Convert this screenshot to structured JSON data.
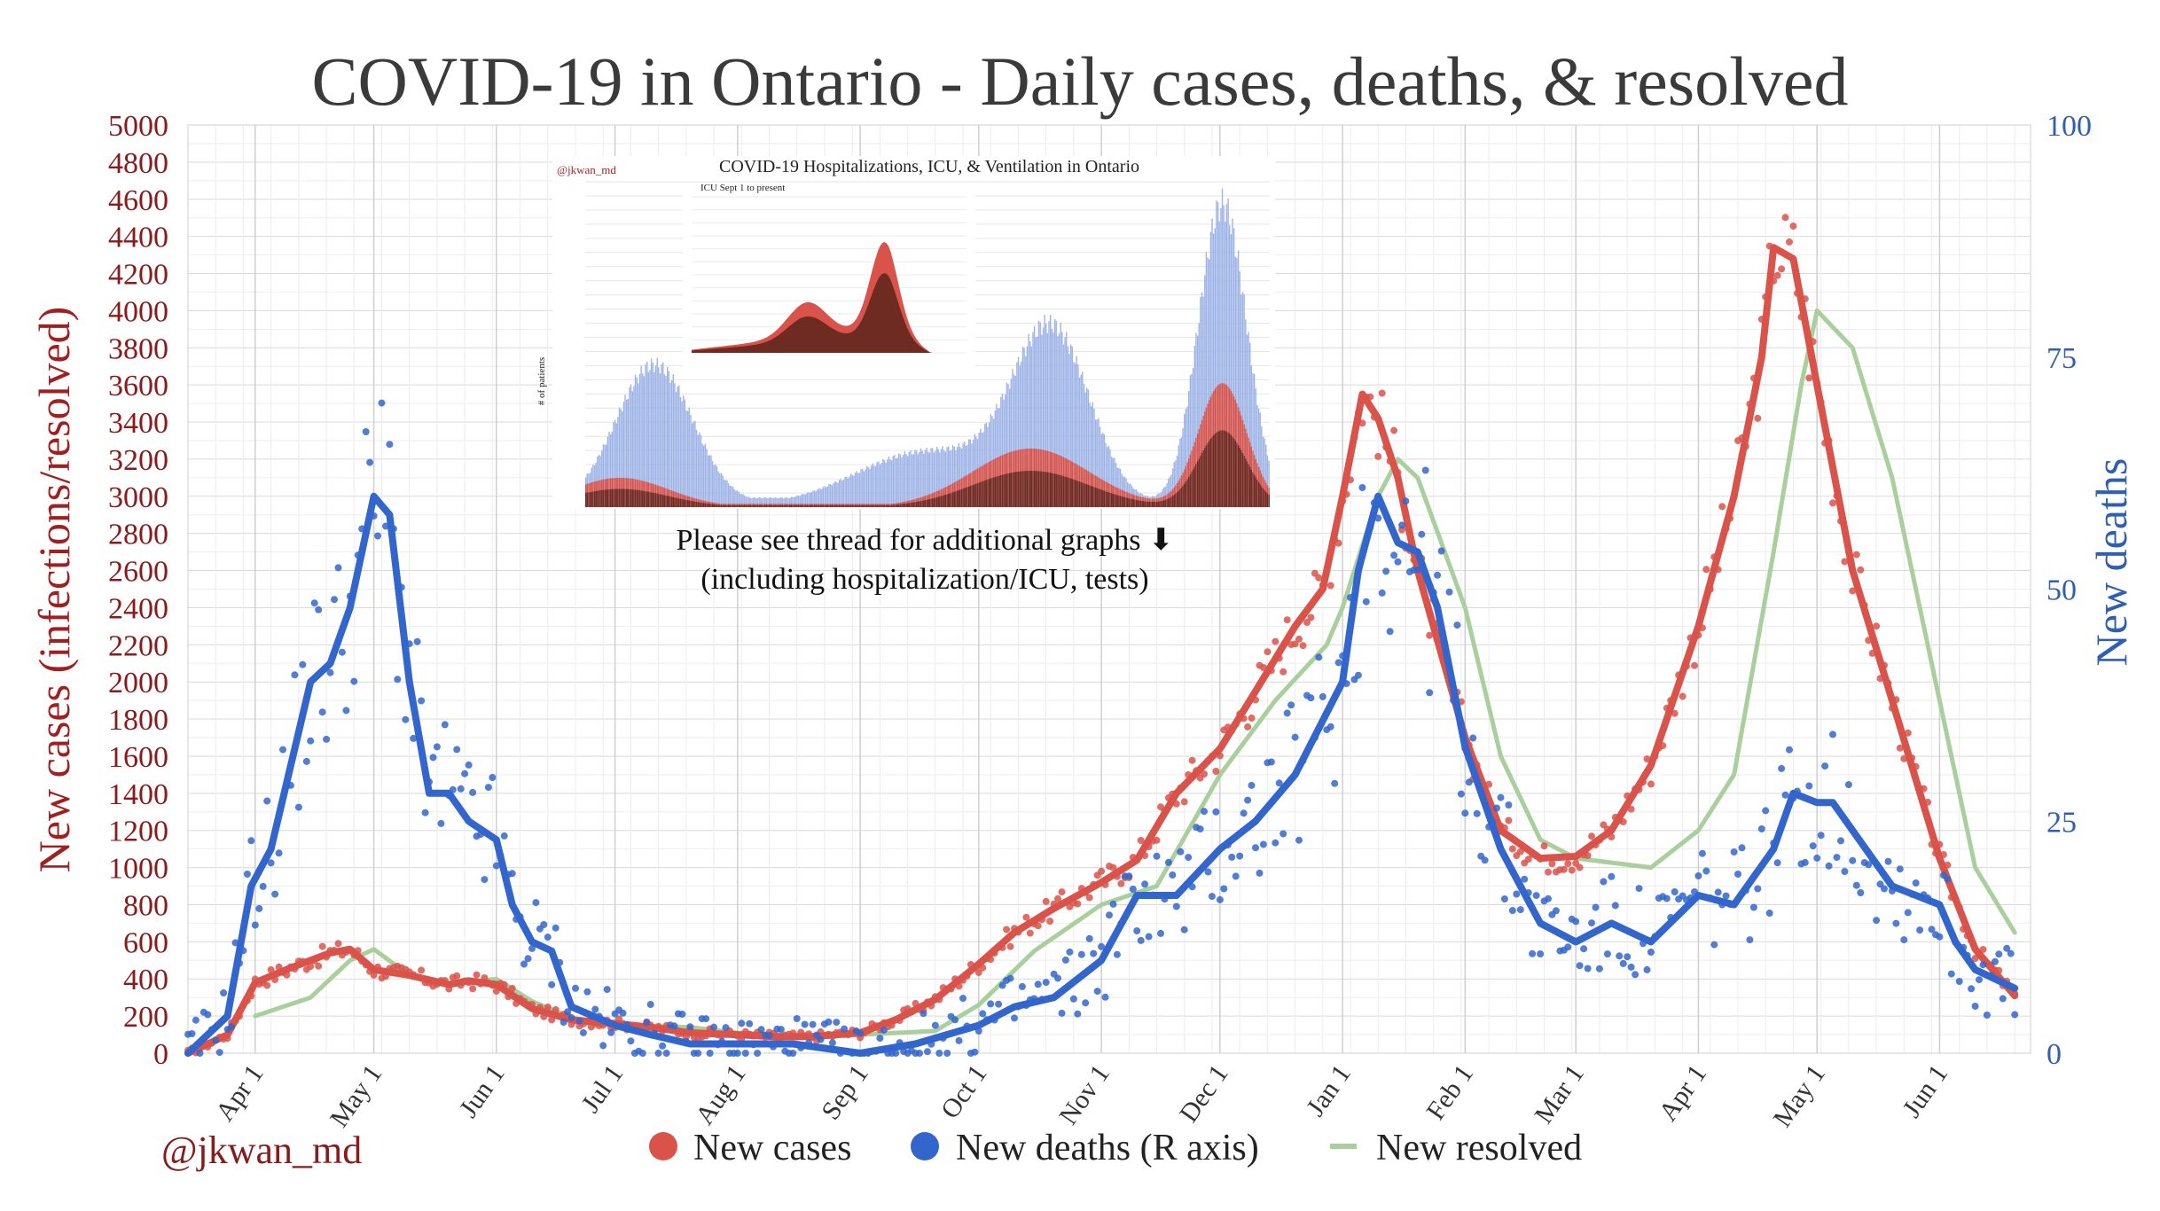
{
  "chart_data": {
    "type": "line",
    "title": "COVID-19 in Ontario - Daily cases, deaths, & resolved",
    "ylabel_left": "New cases (infections/resolved)",
    "ylabel_right": "New deaths",
    "ylim_left": [
      0,
      5000
    ],
    "ylim_right": [
      0,
      100
    ],
    "yticks_left": [
      "0",
      "200",
      "400",
      "600",
      "800",
      "1000",
      "1200",
      "1400",
      "1600",
      "1800",
      "2000",
      "2200",
      "2400",
      "2600",
      "2800",
      "3000",
      "3200",
      "3400",
      "3600",
      "3800",
      "4000",
      "4200",
      "4400",
      "4600",
      "4800",
      "5000"
    ],
    "yticks_right": [
      "0",
      "25",
      "50",
      "75",
      "100"
    ],
    "x_start": "2020-03-15",
    "x_end": "2021-06-24",
    "x_ticks": [
      {
        "label": "Apr 1",
        "date": "2020-04-01"
      },
      {
        "label": "May 1",
        "date": "2020-05-01"
      },
      {
        "label": "Jun 1",
        "date": "2020-06-01"
      },
      {
        "label": "Jul 1",
        "date": "2020-07-01"
      },
      {
        "label": "Aug 1",
        "date": "2020-08-01"
      },
      {
        "label": "Sep 1",
        "date": "2020-09-01"
      },
      {
        "label": "Oct 1",
        "date": "2020-10-01"
      },
      {
        "label": "Nov 1",
        "date": "2020-11-01"
      },
      {
        "label": "Dec 1",
        "date": "2020-12-01"
      },
      {
        "label": "Jan 1",
        "date": "2021-01-01"
      },
      {
        "label": "Feb 1",
        "date": "2021-02-01"
      },
      {
        "label": "Mar 1",
        "date": "2021-03-01"
      },
      {
        "label": "Apr 1",
        "date": "2021-04-01"
      },
      {
        "label": "May 1",
        "date": "2021-05-01"
      },
      {
        "label": "Jun 1",
        "date": "2021-06-01"
      }
    ],
    "grid": true,
    "legend_placement": "bottom",
    "series": [
      {
        "name": "New cases",
        "axis": "left",
        "color": "#d9534a",
        "x": [
          "2020-03-15",
          "2020-03-25",
          "2020-04-01",
          "2020-04-10",
          "2020-04-20",
          "2020-04-25",
          "2020-05-01",
          "2020-05-10",
          "2020-05-20",
          "2020-05-25",
          "2020-06-01",
          "2020-06-10",
          "2020-06-20",
          "2020-07-01",
          "2020-07-10",
          "2020-07-20",
          "2020-08-01",
          "2020-08-10",
          "2020-08-20",
          "2020-09-01",
          "2020-09-10",
          "2020-09-20",
          "2020-10-01",
          "2020-10-10",
          "2020-10-20",
          "2020-11-01",
          "2020-11-10",
          "2020-11-20",
          "2020-12-01",
          "2020-12-10",
          "2020-12-20",
          "2020-12-27",
          "2021-01-01",
          "2021-01-06",
          "2021-01-10",
          "2021-01-15",
          "2021-01-20",
          "2021-02-01",
          "2021-02-10",
          "2021-02-20",
          "2021-03-01",
          "2021-03-10",
          "2021-03-20",
          "2021-04-01",
          "2021-04-10",
          "2021-04-17",
          "2021-04-20",
          "2021-04-25",
          "2021-05-01",
          "2021-05-10",
          "2021-05-20",
          "2021-06-01",
          "2021-06-10",
          "2021-06-20"
        ],
        "values": [
          0,
          100,
          380,
          460,
          540,
          560,
          450,
          420,
          370,
          390,
          370,
          240,
          180,
          160,
          140,
          110,
          100,
          90,
          90,
          110,
          180,
          290,
          480,
          650,
          780,
          920,
          1040,
          1400,
          1640,
          1950,
          2300,
          2500,
          3000,
          3550,
          3420,
          3100,
          2600,
          1700,
          1200,
          1050,
          1060,
          1200,
          1550,
          2300,
          3000,
          3750,
          4340,
          4280,
          3600,
          2600,
          1900,
          1050,
          560,
          310
        ]
      },
      {
        "name": "New deaths (R axis)",
        "axis": "right",
        "color": "#3366cc",
        "x": [
          "2020-03-15",
          "2020-03-25",
          "2020-03-31",
          "2020-04-05",
          "2020-04-15",
          "2020-04-20",
          "2020-04-25",
          "2020-05-01",
          "2020-05-05",
          "2020-05-10",
          "2020-05-15",
          "2020-05-20",
          "2020-05-25",
          "2020-06-01",
          "2020-06-05",
          "2020-06-10",
          "2020-06-15",
          "2020-06-20",
          "2020-07-01",
          "2020-07-10",
          "2020-07-20",
          "2020-08-01",
          "2020-08-15",
          "2020-09-01",
          "2020-09-15",
          "2020-10-01",
          "2020-10-10",
          "2020-10-20",
          "2020-11-01",
          "2020-11-10",
          "2020-11-20",
          "2020-12-01",
          "2020-12-10",
          "2020-12-20",
          "2021-01-01",
          "2021-01-05",
          "2021-01-10",
          "2021-01-15",
          "2021-01-20",
          "2021-01-25",
          "2021-02-01",
          "2021-02-10",
          "2021-02-20",
          "2021-03-01",
          "2021-03-10",
          "2021-03-20",
          "2021-04-01",
          "2021-04-10",
          "2021-04-20",
          "2021-04-25",
          "2021-05-01",
          "2021-05-05",
          "2021-05-10",
          "2021-05-20",
          "2021-06-01",
          "2021-06-05",
          "2021-06-10",
          "2021-06-20"
        ],
        "values": [
          0,
          4,
          18,
          22,
          40,
          42,
          48,
          60,
          58,
          40,
          28,
          28,
          25,
          23,
          16,
          12,
          11,
          5,
          3,
          2,
          1,
          1,
          1,
          0,
          1,
          3,
          5,
          6,
          10,
          17,
          17,
          22,
          25,
          30,
          40,
          52,
          60,
          55,
          54,
          48,
          33,
          22,
          14,
          12,
          14,
          12,
          17,
          16,
          22,
          28,
          27,
          27,
          24,
          18,
          16,
          12,
          9,
          7
        ]
      },
      {
        "name": "New resolved",
        "axis": "left",
        "color": "#a9cf9c",
        "x": [
          "2020-04-01",
          "2020-04-15",
          "2020-04-25",
          "2020-05-01",
          "2020-05-10",
          "2020-05-20",
          "2020-06-01",
          "2020-06-10",
          "2020-06-20",
          "2020-07-01",
          "2020-07-20",
          "2020-08-01",
          "2020-08-20",
          "2020-09-01",
          "2020-09-20",
          "2020-10-01",
          "2020-10-15",
          "2020-11-01",
          "2020-11-15",
          "2020-12-01",
          "2020-12-15",
          "2020-12-28",
          "2021-01-01",
          "2021-01-10",
          "2021-01-15",
          "2021-01-20",
          "2021-02-01",
          "2021-02-10",
          "2021-02-20",
          "2021-03-01",
          "2021-03-20",
          "2021-04-01",
          "2021-04-10",
          "2021-04-20",
          "2021-04-27",
          "2021-05-01",
          "2021-05-10",
          "2021-05-20",
          "2021-06-01",
          "2021-06-10",
          "2021-06-20"
        ],
        "values": [
          200,
          300,
          500,
          560,
          420,
          370,
          400,
          280,
          190,
          150,
          140,
          110,
          90,
          100,
          120,
          260,
          550,
          800,
          900,
          1500,
          1900,
          2200,
          2400,
          3000,
          3200,
          3100,
          2400,
          1600,
          1150,
          1050,
          1000,
          1200,
          1500,
          2700,
          3600,
          4000,
          3800,
          3100,
          1900,
          1000,
          650
        ]
      }
    ]
  },
  "inset": {
    "credit": "@jkwan_md",
    "title": "COVID-19 Hospitalizations, ICU, & Ventilation in Ontario",
    "ylabel": "# of patients",
    "subtitle": "ICU Sept 1 to present"
  },
  "annotation": {
    "line1": "Please see thread for additional graphs ⬇",
    "line2": "(including hospitalization/ICU, tests)"
  },
  "credit": "@jkwan_md",
  "legend": [
    {
      "label": "New cases",
      "color": "#d9534a",
      "marker": "dot"
    },
    {
      "label": "New deaths (R axis)",
      "color": "#3366cc",
      "marker": "dot"
    },
    {
      "label": "New resolved",
      "color": "#a9cf9c",
      "marker": "line"
    }
  ]
}
